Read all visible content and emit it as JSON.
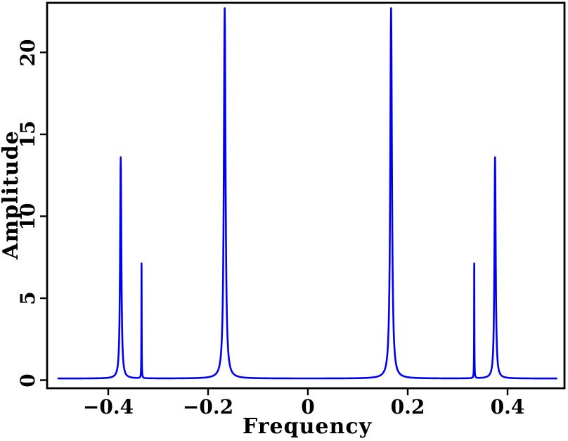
{
  "chart_data": {
    "type": "line",
    "title": "",
    "xlabel": "Frequency",
    "ylabel": "Amplitude",
    "xlim": [
      -0.52,
      0.52
    ],
    "ylim": [
      0,
      23.2
    ],
    "x_ticks": [
      -0.4,
      -0.2,
      0,
      0.2,
      0.4
    ],
    "x_tick_labels": [
      "−0.4",
      "−0.2",
      "0",
      "0.2",
      "0.4"
    ],
    "y_ticks": [
      0,
      5,
      10,
      15,
      20
    ],
    "y_tick_labels": [
      "0",
      "5",
      "10",
      "15",
      "20"
    ],
    "legend": "none",
    "grid": false,
    "line_color": "#0000ee",
    "frame_color": "#000000",
    "background_color": "#ffffff",
    "data_x_range": [
      -0.5,
      0.5
    ],
    "baseline_amplitude": 0.1,
    "peaks": [
      {
        "freq": -0.375,
        "amplitude": 13.6,
        "width": 0.0015
      },
      {
        "freq": -0.3333,
        "amplitude": 7.1,
        "width": 0.0003
      },
      {
        "freq": -0.1667,
        "amplitude": 22.7,
        "width": 0.002
      },
      {
        "freq": 0.1667,
        "amplitude": 22.7,
        "width": 0.002
      },
      {
        "freq": 0.3333,
        "amplitude": 7.1,
        "width": 0.0003
      },
      {
        "freq": 0.375,
        "amplitude": 13.6,
        "width": 0.0015
      }
    ]
  }
}
